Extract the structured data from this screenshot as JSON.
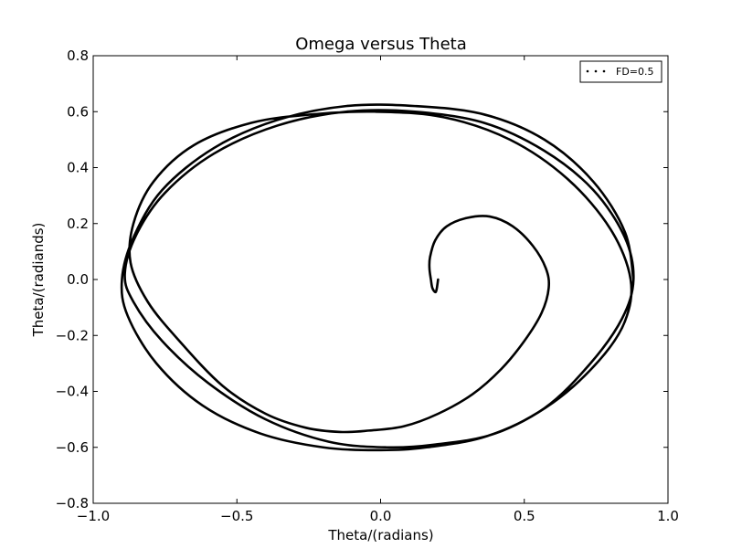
{
  "chart_data": {
    "type": "line",
    "title": "Omega versus Theta",
    "xlabel": "Theta/(radians)",
    "ylabel": "Theta/(radiands)",
    "xlim": [
      -1.0,
      1.0
    ],
    "ylim": [
      -0.8,
      0.8
    ],
    "x_ticks": [
      -1.0,
      -0.5,
      0.0,
      0.5,
      1.0
    ],
    "x_tick_labels": [
      "−1.0",
      "−0.5",
      "0.0",
      "0.5",
      "1.0"
    ],
    "y_ticks": [
      -0.8,
      -0.6,
      -0.4,
      -0.2,
      0.0,
      0.2,
      0.4,
      0.6,
      0.8
    ],
    "y_tick_labels": [
      "−0.8",
      "−0.6",
      "−0.4",
      "−0.2",
      "0.0",
      "0.2",
      "0.4",
      "0.6",
      "0.8"
    ],
    "grid": false,
    "legend_position": "top-right",
    "series": [
      {
        "name": "FD=0.5",
        "color": "#000000",
        "marker": "dotted",
        "x": [
          0.2,
          0.195,
          0.19,
          0.18,
          0.175,
          0.17,
          0.172,
          0.19,
          0.23,
          0.3,
          0.38,
          0.46,
          0.53,
          0.575,
          0.585,
          0.56,
          0.5,
          0.42,
          0.32,
          0.2,
          0.08,
          -0.04,
          -0.14,
          -0.26,
          -0.4,
          -0.55,
          -0.7,
          -0.81,
          -0.87,
          -0.86,
          -0.79,
          -0.65,
          -0.45,
          -0.24,
          -0.02,
          0.22,
          0.45,
          0.65,
          0.8,
          0.87,
          0.85,
          0.76,
          0.6,
          0.4,
          0.19,
          0.02,
          -0.18,
          -0.4,
          -0.6,
          -0.76,
          -0.86,
          -0.89,
          -0.85,
          -0.75,
          -0.58,
          -0.36,
          -0.12,
          0.12,
          0.36,
          0.57,
          0.74,
          0.85,
          0.88,
          0.84,
          0.73,
          0.57,
          0.37,
          0.16,
          0.0,
          -0.2,
          -0.42,
          -0.62,
          -0.78,
          -0.88,
          -0.9,
          -0.86,
          -0.76,
          -0.58,
          -0.36,
          -0.12,
          0.12,
          0.36,
          0.57,
          0.74,
          0.85,
          0.88
        ],
        "y": [
          0.0,
          -0.035,
          -0.045,
          -0.03,
          0.0,
          0.04,
          0.08,
          0.14,
          0.19,
          0.22,
          0.225,
          0.19,
          0.12,
          0.04,
          -0.03,
          -0.12,
          -0.22,
          -0.32,
          -0.41,
          -0.48,
          -0.525,
          -0.54,
          -0.545,
          -0.53,
          -0.48,
          -0.38,
          -0.22,
          -0.08,
          0.06,
          0.2,
          0.35,
          0.48,
          0.56,
          0.59,
          0.6,
          0.58,
          0.5,
          0.36,
          0.18,
          0.0,
          -0.15,
          -0.29,
          -0.44,
          -0.55,
          -0.59,
          -0.6,
          -0.58,
          -0.5,
          -0.37,
          -0.22,
          -0.08,
          0.02,
          0.16,
          0.31,
          0.45,
          0.55,
          0.6,
          0.6,
          0.56,
          0.46,
          0.32,
          0.15,
          0.0,
          -0.14,
          -0.3,
          -0.46,
          -0.56,
          -0.6,
          -0.61,
          -0.6,
          -0.55,
          -0.45,
          -0.3,
          -0.13,
          0.0,
          0.15,
          0.32,
          0.47,
          0.57,
          0.62,
          0.62,
          0.59,
          0.5,
          0.35,
          0.17,
          0.0
        ]
      }
    ]
  }
}
